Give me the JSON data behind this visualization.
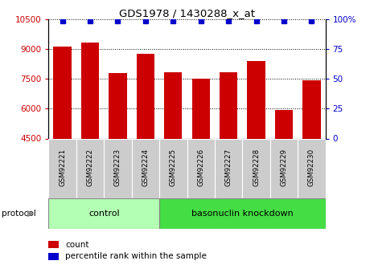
{
  "title": "GDS1978 / 1430288_x_at",
  "samples": [
    "GSM92221",
    "GSM92222",
    "GSM92223",
    "GSM92224",
    "GSM92225",
    "GSM92226",
    "GSM92227",
    "GSM92228",
    "GSM92229",
    "GSM92230"
  ],
  "counts": [
    9150,
    9350,
    7800,
    8750,
    7850,
    7500,
    7830,
    8400,
    5950,
    7450
  ],
  "percentile_ranks": [
    99,
    99,
    99,
    99,
    99,
    99,
    99,
    99,
    99,
    99
  ],
  "ylim_left": [
    4500,
    10500
  ],
  "ylim_right": [
    0,
    100
  ],
  "yticks_left": [
    4500,
    6000,
    7500,
    9000,
    10500
  ],
  "yticks_right": [
    0,
    25,
    50,
    75,
    100
  ],
  "bar_color": "#cc0000",
  "dot_color": "#0000cc",
  "bar_bottom": 4500,
  "n_control": 4,
  "n_knockdown": 6,
  "control_label": "control",
  "knockdown_label": "basonuclin knockdown",
  "protocol_label": "protocol",
  "legend_count": "count",
  "legend_pct": "percentile rank within the sample",
  "control_bg": "#b3ffb3",
  "knockdown_bg": "#44dd44",
  "sample_bg": "#cccccc",
  "right_pct_label": "100%"
}
